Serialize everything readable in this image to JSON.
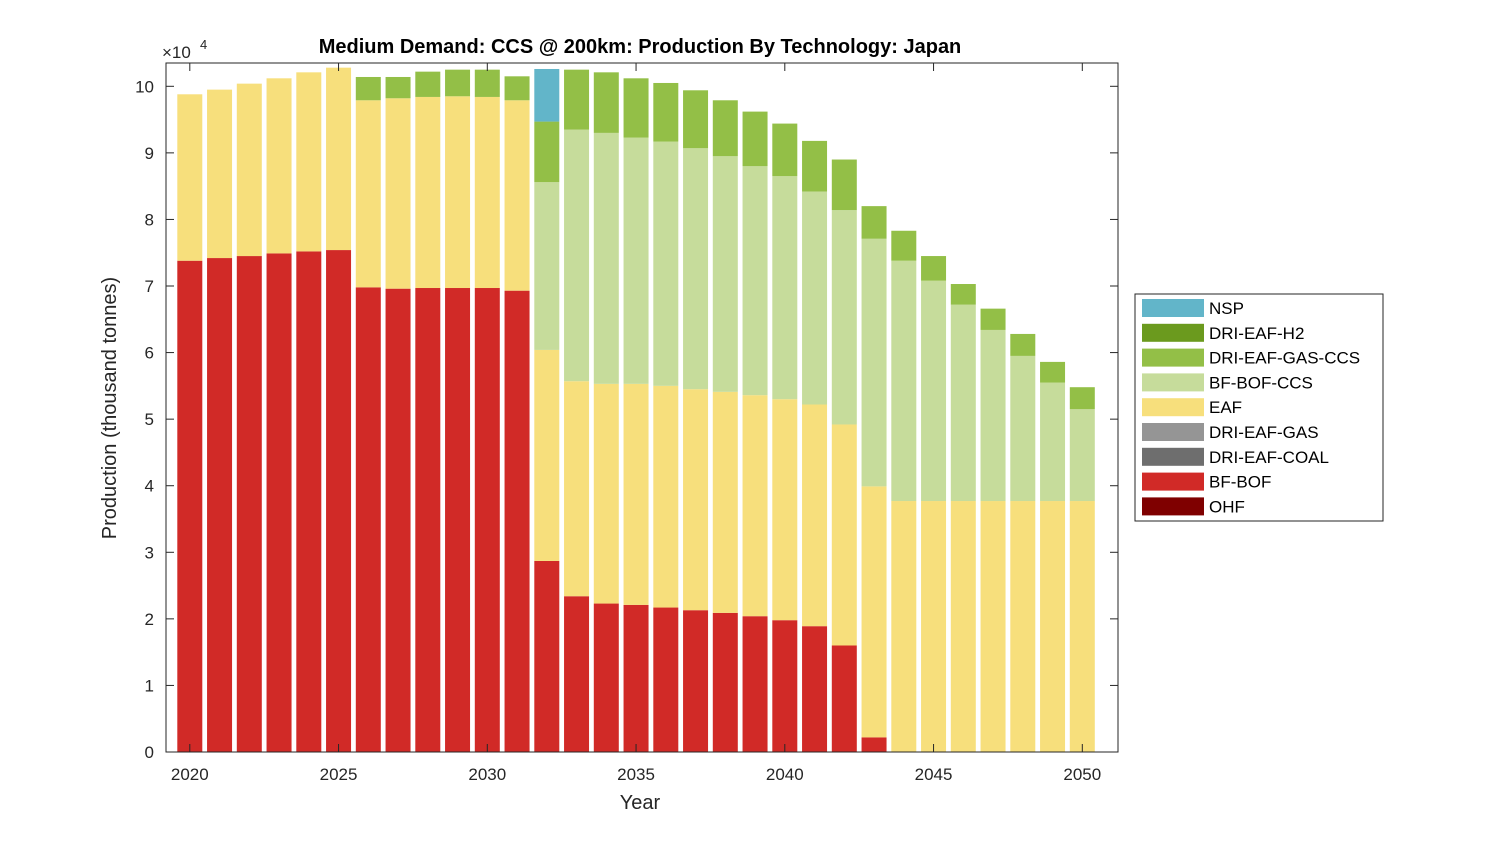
{
  "chart_data": {
    "type": "bar",
    "stacked": true,
    "title": "Medium Demand: CCS @ 200km: Production By Technology: Japan",
    "xlabel": "Year",
    "ylabel": "Production (thousand tonnes)",
    "y_exponent_label": "×10",
    "y_exponent_power": "4",
    "ylim": [
      0,
      103500
    ],
    "xlim": [
      2019.2,
      2051.2
    ],
    "xticks": [
      "2020",
      "2025",
      "2030",
      "2035",
      "2040",
      "2045",
      "2050"
    ],
    "yticks": [
      "0",
      "1",
      "2",
      "3",
      "4",
      "5",
      "6",
      "7",
      "8",
      "9",
      "10"
    ],
    "legend_position": "outside-right",
    "categories": [
      2020,
      2021,
      2022,
      2023,
      2024,
      2025,
      2026,
      2027,
      2028,
      2029,
      2030,
      2031,
      2032,
      2033,
      2034,
      2035,
      2036,
      2037,
      2038,
      2039,
      2040,
      2041,
      2042,
      2043,
      2044,
      2045,
      2046,
      2047,
      2048,
      2049,
      2050
    ],
    "series": [
      {
        "name": "OHF",
        "color": "#7f0000",
        "values": [
          0,
          0,
          0,
          0,
          0,
          0,
          0,
          0,
          0,
          0,
          0,
          0,
          0,
          0,
          0,
          0,
          0,
          0,
          0,
          0,
          0,
          0,
          0,
          0,
          0,
          0,
          0,
          0,
          0,
          0,
          0
        ]
      },
      {
        "name": "BF-BOF",
        "color": "#d12a27",
        "values": [
          73800,
          74200,
          74500,
          74900,
          75200,
          75400,
          69800,
          69600,
          69700,
          69700,
          69700,
          69300,
          28700,
          23400,
          22300,
          22100,
          21700,
          21300,
          20900,
          20400,
          19800,
          18900,
          16000,
          2200,
          0,
          0,
          0,
          0,
          0,
          0,
          0
        ]
      },
      {
        "name": "DRI-EAF-COAL",
        "color": "#6e6e6e",
        "values": [
          0,
          0,
          0,
          0,
          0,
          0,
          0,
          0,
          0,
          0,
          0,
          0,
          0,
          0,
          0,
          0,
          0,
          0,
          0,
          0,
          0,
          0,
          0,
          0,
          0,
          0,
          0,
          0,
          0,
          0,
          0
        ]
      },
      {
        "name": "DRI-EAF-GAS",
        "color": "#959595",
        "values": [
          0,
          0,
          0,
          0,
          0,
          0,
          0,
          0,
          0,
          0,
          0,
          0,
          0,
          0,
          0,
          0,
          0,
          0,
          0,
          0,
          0,
          0,
          0,
          0,
          0,
          0,
          0,
          0,
          0,
          0,
          0
        ]
      },
      {
        "name": "EAF",
        "color": "#f7df7c",
        "values": [
          25000,
          25300,
          25900,
          26300,
          26900,
          27400,
          28100,
          28600,
          28700,
          28800,
          28700,
          28600,
          31700,
          32300,
          33000,
          33200,
          33300,
          33200,
          33200,
          33200,
          33200,
          33300,
          33200,
          37700,
          37700,
          37700,
          37700,
          37700,
          37700,
          37700,
          37700
        ]
      },
      {
        "name": "BF-BOF-CCS",
        "color": "#c6dc9b",
        "values": [
          0,
          0,
          0,
          0,
          0,
          0,
          0,
          0,
          0,
          0,
          0,
          0,
          25200,
          37800,
          37700,
          37000,
          36700,
          36200,
          35400,
          34400,
          33500,
          32000,
          32200,
          37200,
          36100,
          33100,
          29500,
          25700,
          21800,
          17800,
          13800
        ]
      },
      {
        "name": "DRI-EAF-GAS-CCS",
        "color": "#93bf47",
        "values": [
          0,
          0,
          0,
          0,
          0,
          0,
          3500,
          3200,
          3800,
          4000,
          4100,
          3600,
          9100,
          9000,
          9100,
          8900,
          8800,
          8700,
          8400,
          8200,
          7900,
          7600,
          7600,
          4900,
          4500,
          3700,
          3100,
          3200,
          3300,
          3100,
          3300
        ]
      },
      {
        "name": "DRI-EAF-H2",
        "color": "#6b9a1e",
        "values": [
          0,
          0,
          0,
          0,
          0,
          0,
          0,
          0,
          0,
          0,
          0,
          0,
          0,
          0,
          0,
          0,
          0,
          0,
          0,
          0,
          0,
          0,
          0,
          0,
          0,
          0,
          0,
          0,
          0,
          0,
          0
        ]
      },
      {
        "name": "NSP",
        "color": "#62b5c9",
        "values": [
          0,
          0,
          0,
          0,
          0,
          0,
          0,
          0,
          0,
          0,
          0,
          0,
          7900,
          0,
          0,
          0,
          0,
          0,
          0,
          0,
          0,
          0,
          0,
          0,
          0,
          0,
          0,
          0,
          0,
          0,
          0
        ]
      }
    ],
    "legend_order": [
      "NSP",
      "DRI-EAF-H2",
      "DRI-EAF-GAS-CCS",
      "BF-BOF-CCS",
      "EAF",
      "DRI-EAF-GAS",
      "DRI-EAF-COAL",
      "BF-BOF",
      "OHF"
    ]
  }
}
